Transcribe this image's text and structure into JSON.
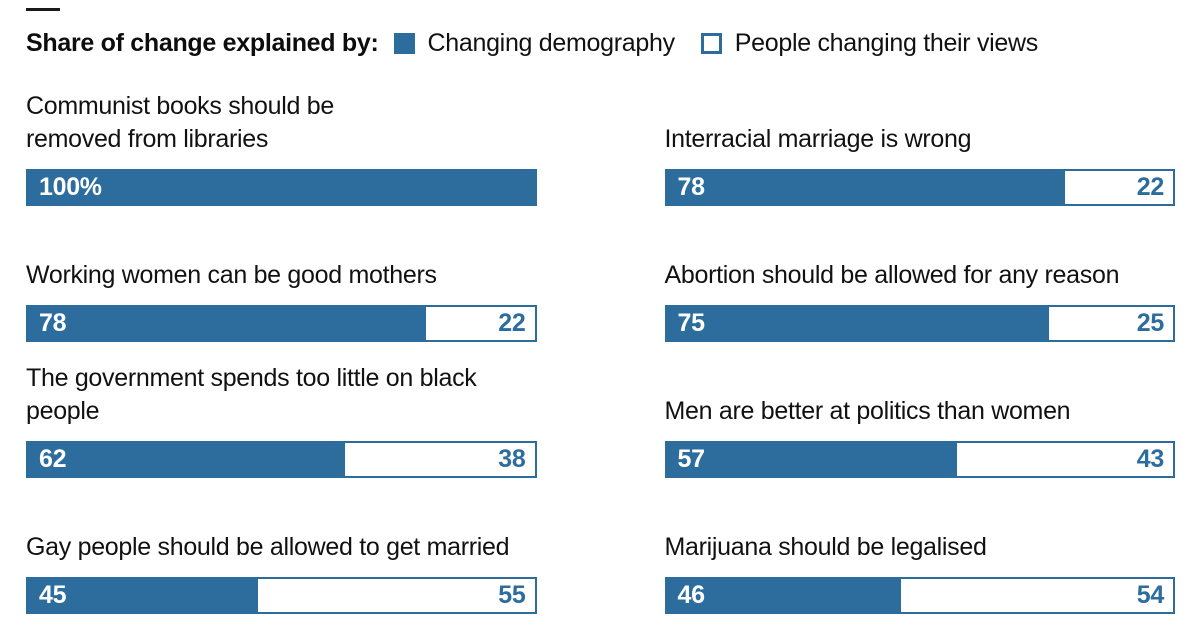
{
  "header": {
    "title": "Share of change explained by:",
    "legend": [
      {
        "label": "Changing demography",
        "swatch": "filled-square"
      },
      {
        "label": "People changing their views",
        "swatch": "outline-square"
      }
    ]
  },
  "colors": {
    "bar_blue": "#2d6d9e",
    "text_dark": "#111111",
    "top_rule": "#1a1a1a",
    "background": "#ffffff"
  },
  "chart_data": {
    "type": "bar",
    "variant": "horizontal-stacked-100",
    "unit": "percent",
    "title": "Share of change explained by:",
    "legend": [
      "Changing demography",
      "People changing their views"
    ],
    "legend_position": "top",
    "grid": "off",
    "columns": 2,
    "series_names": [
      "Changing demography",
      "People changing their views"
    ],
    "items": [
      {
        "statement": "Communist books should be removed from libraries",
        "label_lines": [
          "Communist books should be",
          "removed from libraries"
        ],
        "changing_demography": 100,
        "people_changing_views": 0,
        "demography_label": "100%",
        "views_label": ""
      },
      {
        "statement": "Interracial marriage is wrong",
        "label_lines": [
          "Interracial marriage is wrong"
        ],
        "changing_demography": 78,
        "people_changing_views": 22,
        "demography_label": "78",
        "views_label": "22"
      },
      {
        "statement": "Working women can be good mothers",
        "label_lines": [
          "Working women can be good mothers"
        ],
        "changing_demography": 78,
        "people_changing_views": 22,
        "demography_label": "78",
        "views_label": "22"
      },
      {
        "statement": "Abortion should be allowed for any reason",
        "label_lines": [
          "Abortion should be allowed for any reason"
        ],
        "changing_demography": 75,
        "people_changing_views": 25,
        "demography_label": "75",
        "views_label": "25"
      },
      {
        "statement": "The government spends too little on black people",
        "label_lines": [
          "The government spends too little on black people"
        ],
        "changing_demography": 62,
        "people_changing_views": 38,
        "demography_label": "62",
        "views_label": "38"
      },
      {
        "statement": "Men are better at politics than women",
        "label_lines": [
          "Men are better at politics than women"
        ],
        "changing_demography": 57,
        "people_changing_views": 43,
        "demography_label": "57",
        "views_label": "43"
      },
      {
        "statement": "Gay people should be allowed to get married",
        "label_lines": [
          "Gay people should be allowed to get married"
        ],
        "changing_demography": 45,
        "people_changing_views": 55,
        "demography_label": "45",
        "views_label": "55"
      },
      {
        "statement": "Marijuana should be legalised",
        "label_lines": [
          "Marijuana should be legalised"
        ],
        "changing_demography": 46,
        "people_changing_views": 54,
        "demography_label": "46",
        "views_label": "54"
      }
    ]
  }
}
